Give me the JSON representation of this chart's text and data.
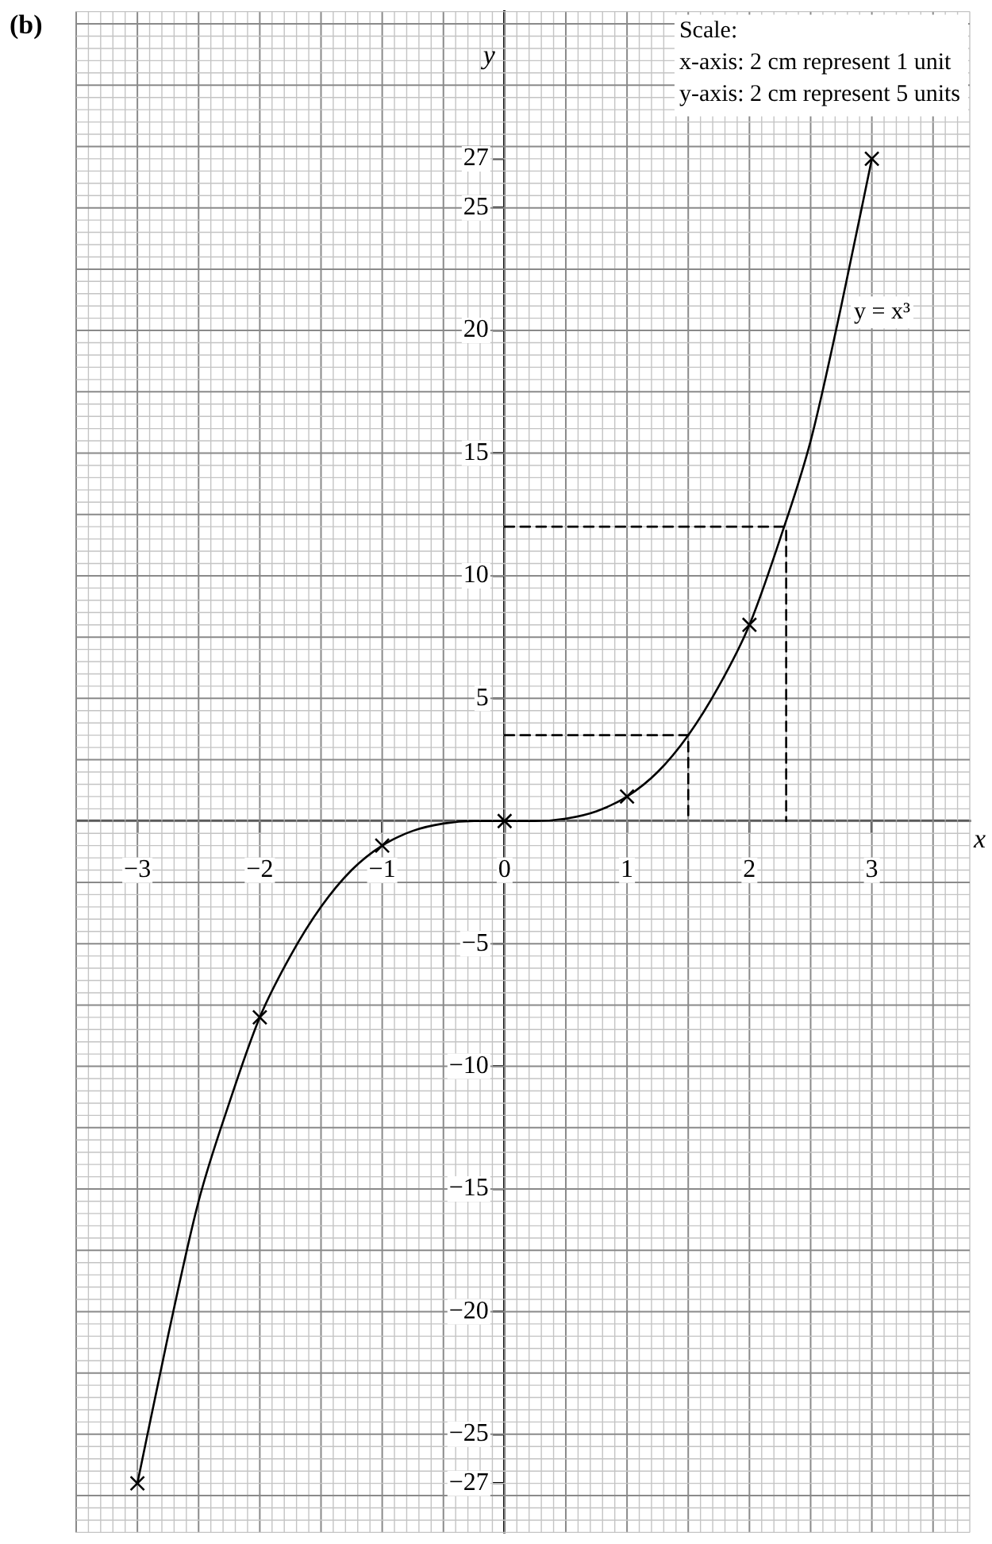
{
  "chart_data": {
    "type": "line",
    "title": "(b)",
    "xlabel": "x",
    "ylabel": "y",
    "xlim": [
      -3.5,
      3.8
    ],
    "ylim": [
      -29,
      33
    ],
    "xticks": [
      {
        "value": -3,
        "label": "−3"
      },
      {
        "value": -2,
        "label": "−2"
      },
      {
        "value": -1,
        "label": "−1"
      },
      0,
      1,
      2,
      3
    ],
    "yticks": [
      {
        "value": -27,
        "label": "−27"
      },
      {
        "value": -25,
        "label": "−25"
      },
      {
        "value": -20,
        "label": "−20"
      },
      {
        "value": -15,
        "label": "−15"
      },
      {
        "value": -10,
        "label": "−10"
      },
      {
        "value": -5,
        "label": "−5"
      },
      5,
      10,
      15,
      20,
      25,
      27
    ],
    "grid": true,
    "annotations": [
      "Scale:",
      "x-axis: 2 cm represent 1 unit",
      "y-axis: 2 cm represent 5 units"
    ],
    "series": [
      {
        "type": "line",
        "name": "y = x³",
        "color": "#000000",
        "marker": "none",
        "line_style": "solid",
        "x": [
          -3,
          -2.75,
          -2.5,
          -2.25,
          -2,
          -1.75,
          -1.5,
          -1.25,
          -1,
          -0.75,
          -0.5,
          -0.25,
          0,
          0.25,
          0.5,
          0.75,
          1,
          1.25,
          1.5,
          1.75,
          2,
          2.25,
          2.5,
          2.75,
          3
        ],
        "values": [
          -27,
          -21,
          -15.5,
          -11.5,
          -8,
          -5.5,
          -3.5,
          -2,
          -1,
          -0.4,
          -0.1,
          0,
          0,
          0,
          0.1,
          0.4,
          1,
          2,
          3.5,
          5.5,
          8,
          11.5,
          15.5,
          21,
          27
        ]
      },
      {
        "type": "scatter",
        "color": "#000000",
        "marker": "cross",
        "x": [
          -3,
          -2,
          -1,
          0,
          1,
          2,
          3
        ],
        "values": [
          -27,
          -8,
          -1,
          0,
          1,
          8,
          27
        ]
      },
      {
        "type": "line",
        "color": "#000000",
        "marker": "none",
        "line_style": "dashed",
        "x": [
          0,
          1.5,
          1.5
        ],
        "values": [
          3.5,
          3.5,
          0
        ]
      },
      {
        "type": "line",
        "color": "#000000",
        "marker": "none",
        "line_style": "dashed",
        "x": [
          0,
          2.3,
          2.3
        ],
        "values": [
          12,
          12,
          0
        ]
      }
    ]
  }
}
